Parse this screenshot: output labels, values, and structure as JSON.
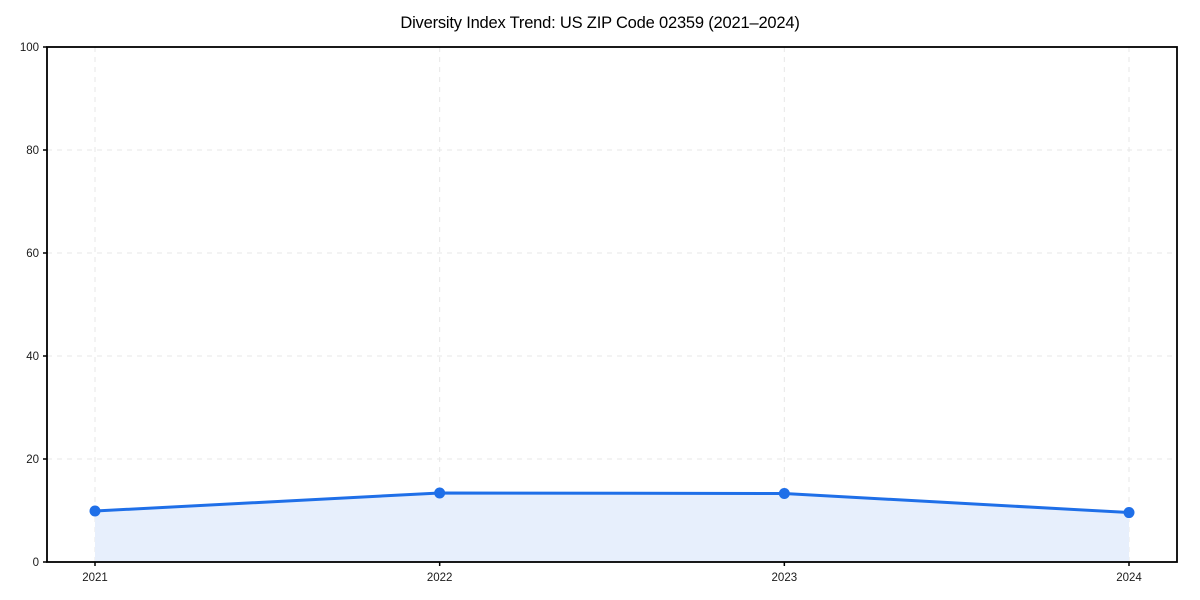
{
  "chart_data": {
    "type": "area",
    "title": "Diversity Index Trend: US ZIP Code 02359 (2021–2024)",
    "categories": [
      "2021",
      "2022",
      "2023",
      "2024"
    ],
    "values": [
      9.9,
      13.4,
      13.3,
      9.6
    ],
    "series_name": "Diversity Index",
    "xlabel": "",
    "ylabel": "",
    "ylim": [
      0,
      100
    ],
    "yticks": [
      0,
      20,
      40,
      60,
      80,
      100
    ],
    "grid": true,
    "legend": "none",
    "line_color": "#1f6fe8",
    "marker_color": "#1f6fe8",
    "fill_color": "#e7effc",
    "grid_color": "#e7e7e7",
    "axis_color": "#000000",
    "tick_text_color": "#1a1a1a"
  }
}
